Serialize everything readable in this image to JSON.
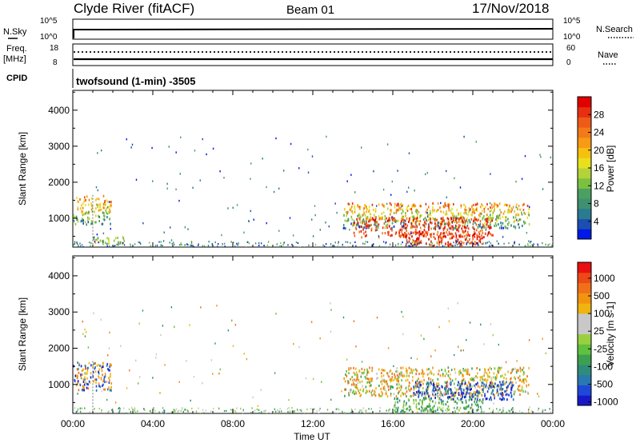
{
  "header": {
    "station": "Clyde River (fitACF)",
    "beam": "Beam 01",
    "date": "17/Nov/2018"
  },
  "status_panels": {
    "nsky_label": "N.Sky",
    "nsky_ticks": [
      "10^5",
      "10^0"
    ],
    "nsearch_label": "N.Search",
    "nsearch_ticks": [
      "10^5",
      "10^0"
    ],
    "freq_label": "Freq.",
    "freq_unit": "[MHz]",
    "freq_ticks": [
      "18",
      "8"
    ],
    "nave_label": "Nave",
    "nave_ticks": [
      "60",
      "0"
    ],
    "cpid_label": "CPID",
    "cpid_value": "twofsound (1-min) -3505"
  },
  "chart_data": [
    {
      "type": "heatmap",
      "name": "power",
      "xlabel": "",
      "ylabel": "Slant Range [km]",
      "x_ticks": [
        "00:00",
        "04:00",
        "08:00",
        "12:00",
        "16:00",
        "20:00",
        "00:00"
      ],
      "x_range_hours": [
        0,
        24
      ],
      "y_ticks": [
        1000,
        2000,
        3000,
        4000
      ],
      "ylim": [
        200,
        4550
      ],
      "colorbar": {
        "label": "Power [dB]",
        "ticks": [
          "4",
          "8",
          "12",
          "16",
          "20",
          "24",
          "28"
        ],
        "colors": [
          "#0018e8",
          "#1b4fb0",
          "#2a7a90",
          "#3e9070",
          "#4aa060",
          "#7cc040",
          "#b4d23a",
          "#e8e01e",
          "#f5c010",
          "#f79a14",
          "#f37a18",
          "#ee5a18",
          "#e83010",
          "#e00000"
        ]
      },
      "features": [
        {
          "t": [
            0.0,
            1.9
          ],
          "range": [
            850,
            1650
          ],
          "level": "mid"
        },
        {
          "t": [
            1.0,
            2.6
          ],
          "range": [
            300,
            520
          ],
          "level": "low-mid"
        },
        {
          "t": [
            13.5,
            22.8
          ],
          "range": [
            750,
            1450
          ],
          "level": "mid"
        },
        {
          "t": [
            14.0,
            21.0
          ],
          "range": [
            500,
            1050
          ],
          "level": "high"
        },
        {
          "t": [
            16.5,
            20.5
          ],
          "range": [
            250,
            650
          ],
          "level": "high"
        }
      ]
    },
    {
      "type": "heatmap",
      "name": "velocity",
      "xlabel": "Time UT",
      "ylabel": "Slant Range [km]",
      "x_ticks": [
        "00:00",
        "04:00",
        "08:00",
        "12:00",
        "16:00",
        "20:00",
        "00:00"
      ],
      "x_range_hours": [
        0,
        24
      ],
      "y_ticks": [
        1000,
        2000,
        3000,
        4000
      ],
      "ylim": [
        200,
        4550
      ],
      "colorbar": {
        "label": "Velocity [m s-1]",
        "ticks": [
          "1000",
          "500",
          "100",
          "25",
          "-25",
          "-100",
          "-500",
          "-1000"
        ],
        "colors": [
          "#1818c8",
          "#1e48d8",
          "#2a78b0",
          "#2f8c7a",
          "#3da050",
          "#60c040",
          "#9ad040",
          "#c8c8c8",
          "#c8c8c8",
          "#f0b410",
          "#f29410",
          "#f07018",
          "#ec4818",
          "#e81010"
        ]
      },
      "features": [
        {
          "t": [
            0.0,
            1.9
          ],
          "range": [
            850,
            1650
          ],
          "level": "mixed-blue-orange"
        },
        {
          "t": [
            13.5,
            22.8
          ],
          "range": [
            700,
            1500
          ],
          "level": "orange-green"
        },
        {
          "t": [
            17.0,
            22.0
          ],
          "range": [
            600,
            1100
          ],
          "level": "blue"
        },
        {
          "t": [
            16.0,
            20.5
          ],
          "range": [
            200,
            650
          ],
          "level": "green"
        }
      ]
    }
  ]
}
